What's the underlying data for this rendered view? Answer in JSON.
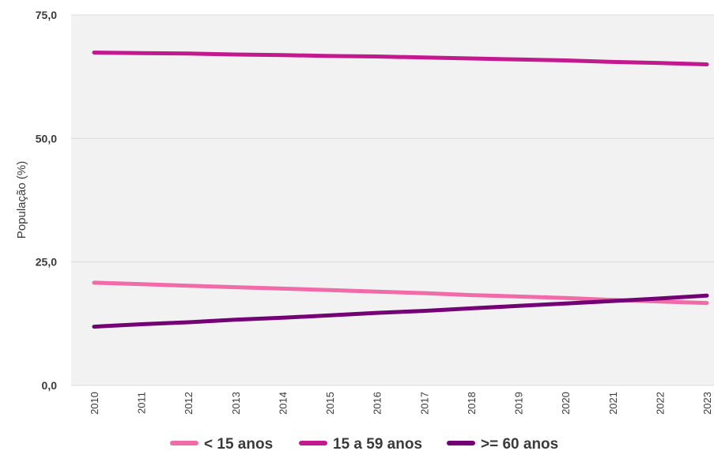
{
  "chart_data": {
    "type": "line",
    "ylabel": "População (%)",
    "ylim": [
      0,
      75
    ],
    "yticks": [
      "0,0",
      "25,0",
      "50,0",
      "75,0"
    ],
    "ytick_values": [
      0,
      25,
      50,
      75
    ],
    "x": [
      "2010",
      "2011",
      "2012",
      "2013",
      "2014",
      "2015",
      "2016",
      "2017",
      "2018",
      "2019",
      "2020",
      "2021",
      "2022",
      "2023"
    ],
    "grid": true,
    "legend_position": "bottom",
    "series": [
      {
        "name": "< 15 anos",
        "color": "#f06ba8",
        "values": [
          20.8,
          20.5,
          20.2,
          19.9,
          19.6,
          19.3,
          19.0,
          18.7,
          18.3,
          18.0,
          17.7,
          17.3,
          17.0,
          16.7
        ]
      },
      {
        "name": "15 a 59 anos",
        "color": "#c2198f",
        "values": [
          67.4,
          67.3,
          67.2,
          67.0,
          66.9,
          66.7,
          66.6,
          66.4,
          66.2,
          66.0,
          65.8,
          65.5,
          65.3,
          65.0
        ]
      },
      {
        "name": ">= 60 anos",
        "color": "#730075",
        "values": [
          11.9,
          12.4,
          12.8,
          13.3,
          13.7,
          14.2,
          14.7,
          15.1,
          15.6,
          16.1,
          16.6,
          17.1,
          17.6,
          18.2
        ]
      }
    ]
  }
}
